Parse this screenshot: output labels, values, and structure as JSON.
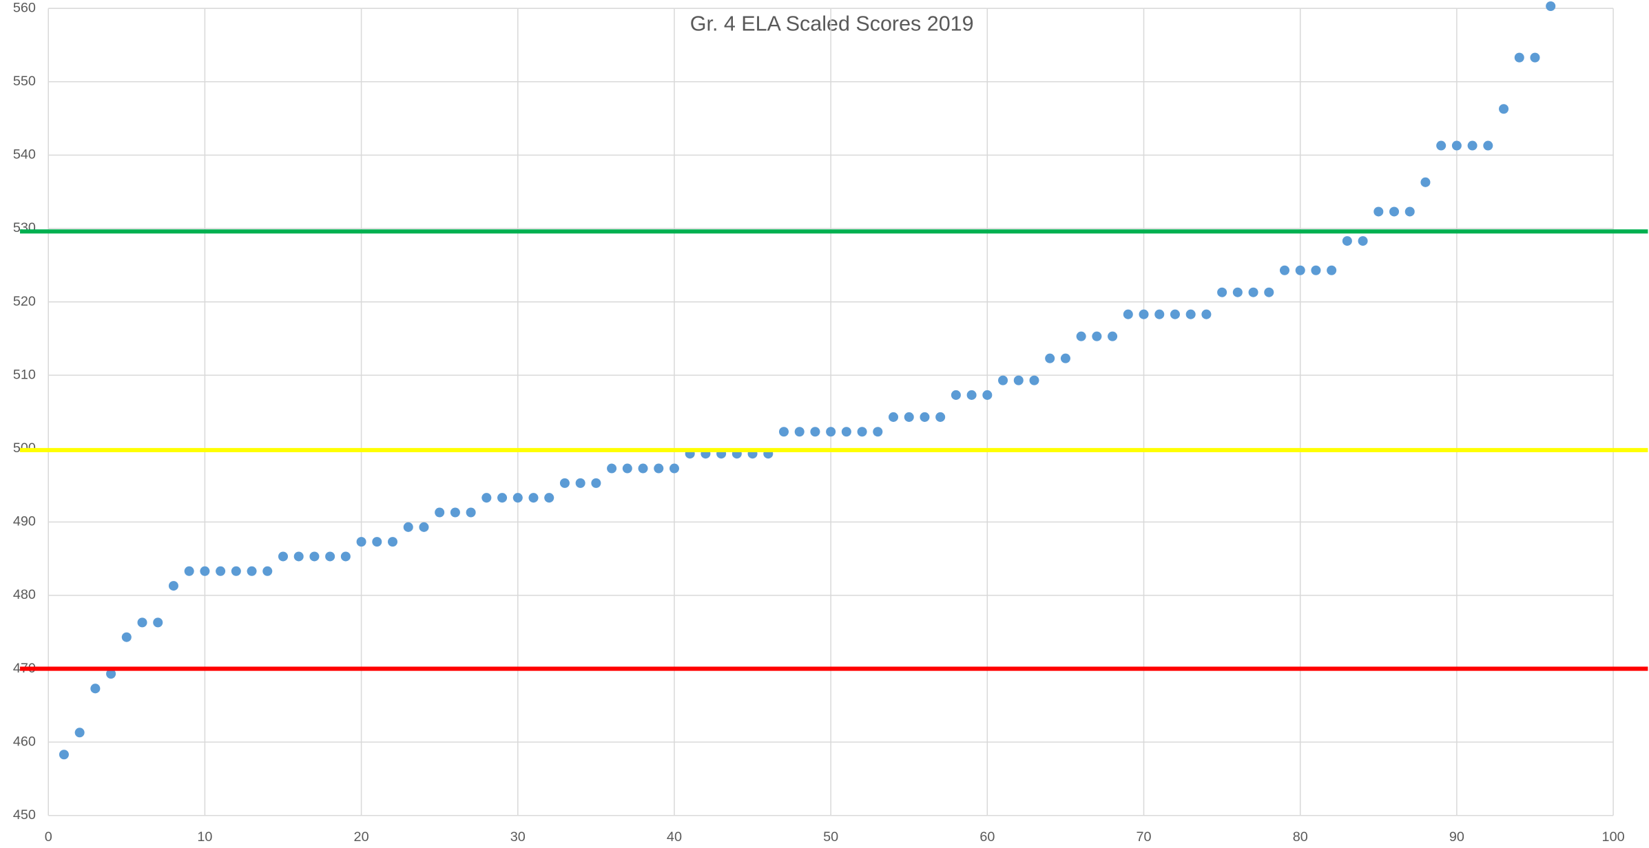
{
  "chart_data": {
    "type": "scatter",
    "title": "Gr. 4 ELA Scaled Scores 2019",
    "series": [
      {
        "color": "#5b9bd5",
        "x": [
          1,
          2,
          3,
          4,
          5,
          6,
          7,
          8,
          9,
          10,
          11,
          12,
          13,
          14,
          15,
          16,
          17,
          18,
          19,
          20,
          21,
          22,
          23,
          24,
          25,
          26,
          27,
          28,
          29,
          30,
          31,
          32,
          33,
          34,
          35,
          36,
          37,
          38,
          39,
          40,
          41,
          42,
          43,
          44,
          45,
          46,
          47,
          48,
          49,
          50,
          51,
          52,
          53,
          54,
          55,
          56,
          57,
          58,
          59,
          60,
          61,
          62,
          63,
          64,
          65,
          66,
          67,
          68,
          69,
          70,
          71,
          72,
          73,
          74,
          75,
          76,
          77,
          78,
          79,
          80,
          81,
          82,
          83,
          84,
          85,
          86,
          87,
          88,
          89,
          90,
          91,
          92,
          93,
          94,
          95,
          96
        ],
        "values": [
          458.3,
          461.3,
          467.3,
          469.3,
          474.3,
          476.3,
          476.3,
          481.3,
          483.3,
          483.3,
          483.3,
          483.3,
          483.3,
          483.3,
          485.3,
          485.3,
          485.3,
          485.3,
          485.3,
          487.3,
          487.3,
          487.3,
          489.3,
          489.3,
          491.3,
          491.3,
          491.3,
          493.3,
          493.3,
          493.3,
          493.3,
          493.3,
          495.3,
          495.3,
          495.3,
          497.3,
          497.3,
          497.3,
          497.3,
          497.3,
          499.3,
          499.3,
          499.3,
          499.3,
          499.3,
          499.3,
          502.3,
          502.3,
          502.3,
          502.3,
          502.3,
          502.3,
          502.3,
          504.3,
          504.3,
          504.3,
          504.3,
          507.3,
          507.3,
          507.3,
          509.3,
          509.3,
          509.3,
          512.3,
          512.3,
          515.3,
          515.3,
          515.3,
          518.3,
          518.3,
          518.3,
          518.3,
          518.3,
          518.3,
          521.3,
          521.3,
          521.3,
          521.3,
          524.3,
          524.3,
          524.3,
          524.3,
          528.3,
          528.3,
          532.3,
          532.3,
          532.3,
          536.3,
          541.3,
          541.3,
          541.3,
          541.3,
          546.3,
          553.3,
          553.3,
          560.3
        ]
      }
    ],
    "reference_lines": [
      {
        "value": 529.6,
        "color": "#00b050"
      },
      {
        "value": 499.8,
        "color": "#ffff00"
      },
      {
        "value": 470,
        "color": "#ff0000"
      }
    ],
    "xlim": [
      0,
      100
    ],
    "xticks": [
      0,
      10,
      20,
      30,
      40,
      50,
      60,
      70,
      80,
      90,
      100
    ],
    "ylim": [
      450,
      560
    ],
    "yticks": [
      450,
      460,
      470,
      480,
      490,
      500,
      510,
      520,
      530,
      540,
      550,
      560
    ],
    "grid": true
  }
}
